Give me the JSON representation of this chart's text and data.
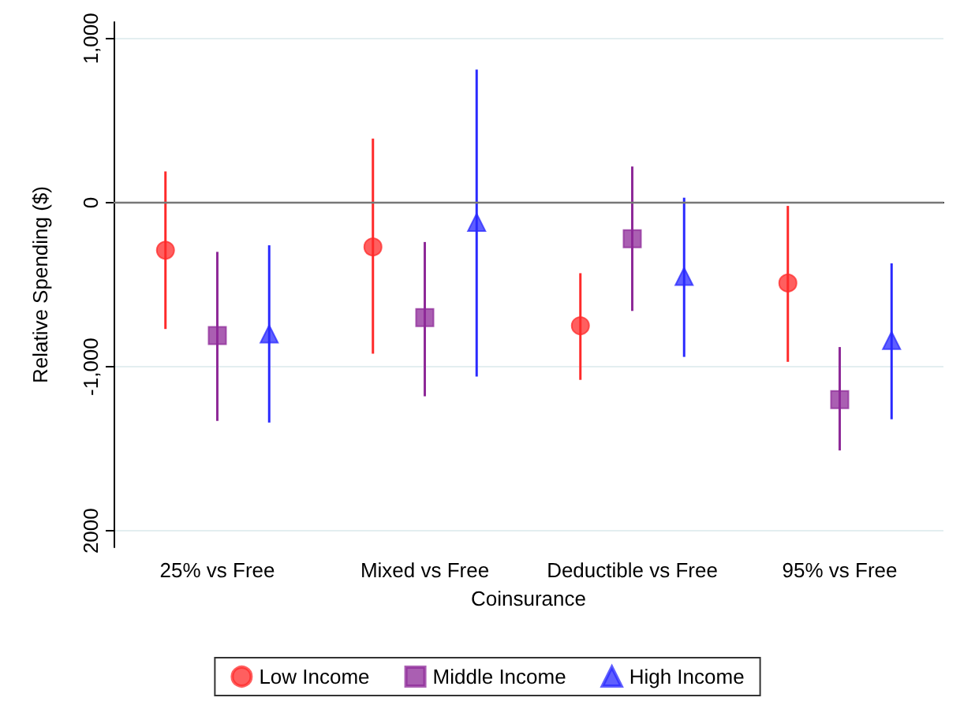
{
  "chart_data": {
    "type": "scatter",
    "xlabel": "Coinsurance",
    "ylabel": "Relative Spending ($)",
    "categories": [
      "25% vs Free",
      "Mixed vs Free",
      "Deductible vs Free",
      "95% vs Free"
    ],
    "series": [
      {
        "name": "Low Income",
        "color": "#ff2a2a",
        "marker": "circle",
        "values": [
          -290,
          -270,
          -750,
          -490
        ],
        "errors": [
          [
            -770,
            190
          ],
          [
            -920,
            390
          ],
          [
            -1080,
            -430
          ],
          [
            -970,
            -20
          ]
        ]
      },
      {
        "name": "Middle Income",
        "color": "#8e2a98",
        "marker": "square",
        "values": [
          -810,
          -700,
          -220,
          -1200
        ],
        "errors": [
          [
            -1330,
            -300
          ],
          [
            -1180,
            -240
          ],
          [
            -660,
            220
          ],
          [
            -1510,
            -880
          ]
        ]
      },
      {
        "name": "High Income",
        "color": "#2a2aff",
        "marker": "triangle",
        "values": [
          -800,
          -120,
          -450,
          -840
        ],
        "errors": [
          [
            -1340,
            -260
          ],
          [
            -1060,
            810
          ],
          [
            -940,
            30
          ],
          [
            -1320,
            -370
          ]
        ]
      }
    ],
    "ylim": [
      -2100,
      1100
    ],
    "yticks": [
      {
        "value": 1000,
        "label": "1,000"
      },
      0,
      {
        "value": -1000,
        "label": "-1,000"
      },
      {
        "value": -2000,
        "label": "2000"
      }
    ],
    "ref_lines": [
      {
        "axis": "y",
        "value": 0,
        "color": "#777777"
      }
    ],
    "grid": "y",
    "legend": "bottom"
  }
}
